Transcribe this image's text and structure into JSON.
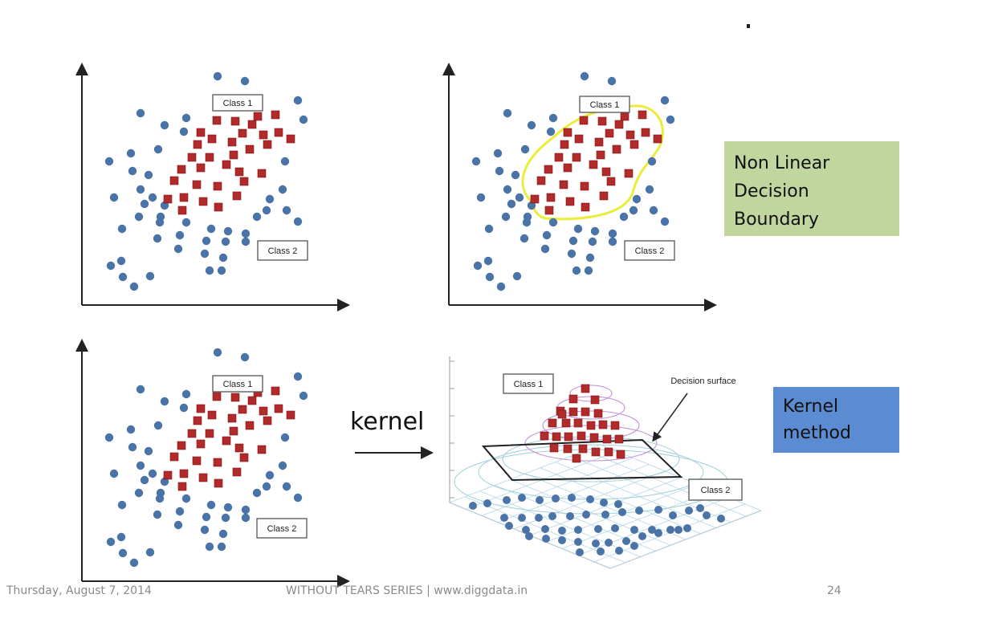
{
  "colors": {
    "class1": "#b22a2a",
    "class2": "#4a74a8",
    "boundary": "#ecec3a",
    "box_nonlinear": "#c1d59e",
    "box_kernel": "#5b8bd1"
  },
  "labels": {
    "class1": "Class 1",
    "class2": "Class 2",
    "decision_surface": "Decision surface",
    "kernel": "kernel"
  },
  "boxes": {
    "nonlinear": [
      "Non Linear",
      "Decision",
      "Boundary"
    ],
    "kernel": [
      "Kernel",
      "method"
    ]
  },
  "footer": {
    "date": "Thursday, August 7, 2014",
    "series": "WITHOUT TEARS SERIES | www.diggdata.in",
    "page": "24"
  }
}
